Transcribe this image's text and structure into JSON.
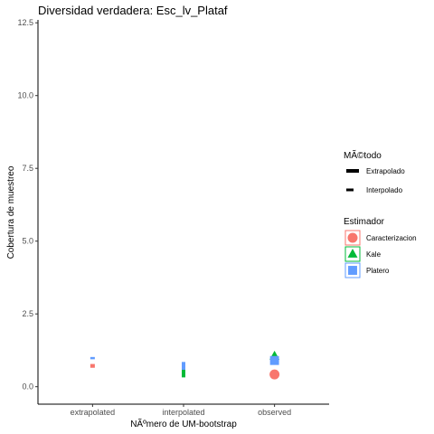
{
  "chart_data": {
    "type": "scatter",
    "title": "Diversidad verdadera: Esc_lv_Plataf",
    "xlabel": "NÃºmero de UM-bootstrap",
    "ylabel": "Cobertura de muestreo",
    "categories": [
      "extrapolated",
      "interpolated",
      "observed"
    ],
    "yticks": [
      0.0,
      2.5,
      5.0,
      7.5,
      10.0,
      12.5
    ],
    "yticklabels": [
      "0.0",
      "2.5",
      "5.0",
      "7.5",
      "10.0",
      "12.5"
    ],
    "ylim": [
      -0.6,
      12.6
    ],
    "grid": false,
    "series": [
      {
        "name": "Caracterizacion",
        "color": "#F8766D",
        "segments": [
          {
            "category": "extrapolated",
            "ymin": 0.65,
            "ymax": 0.78,
            "method": "Extrapolado"
          }
        ],
        "points": [
          {
            "category": "observed",
            "y": 0.42
          }
        ],
        "shape": "circle"
      },
      {
        "name": "Kale",
        "color": "#00BA38",
        "segments": [
          {
            "category": "interpolated",
            "ymin": 0.32,
            "ymax": 0.58,
            "method": "Interpolado"
          }
        ],
        "points": [
          {
            "category": "observed",
            "y": 1.05
          }
        ],
        "shape": "triangle"
      },
      {
        "name": "Platero",
        "color": "#619CFF",
        "segments": [
          {
            "category": "extrapolated",
            "ymin": 0.95,
            "ymax": 1.02,
            "method": "Extrapolado"
          },
          {
            "category": "interpolated",
            "ymin": 0.58,
            "ymax": 0.85,
            "method": "Interpolado"
          }
        ],
        "points": [
          {
            "category": "observed",
            "y": 0.9
          }
        ],
        "shape": "square"
      }
    ],
    "legend": {
      "placement": "right",
      "method_title": "MÃ©todo",
      "methods": [
        {
          "label": "Extrapolado",
          "style": "thick"
        },
        {
          "label": "Interpolado",
          "style": "thin"
        }
      ],
      "estimator_title": "Estimador",
      "estimators": [
        {
          "label": "Caracterizacion",
          "color": "#F8766D",
          "shape": "circle"
        },
        {
          "label": "Kale",
          "color": "#00BA38",
          "shape": "triangle"
        },
        {
          "label": "Platero",
          "color": "#619CFF",
          "shape": "square"
        }
      ]
    }
  }
}
